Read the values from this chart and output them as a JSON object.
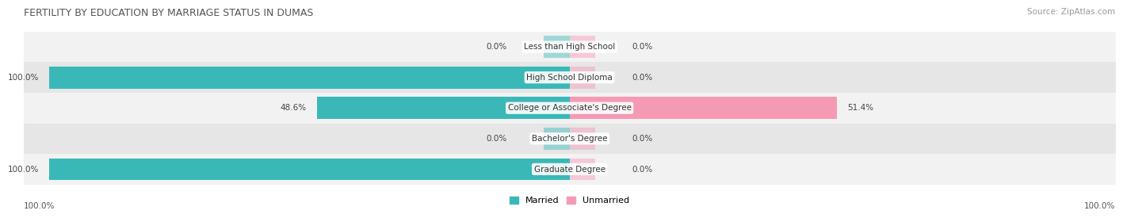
{
  "title": "FERTILITY BY EDUCATION BY MARRIAGE STATUS IN DUMAS",
  "source": "Source: ZipAtlas.com",
  "categories": [
    "Less than High School",
    "High School Diploma",
    "College or Associate's Degree",
    "Bachelor's Degree",
    "Graduate Degree"
  ],
  "married": [
    0.0,
    100.0,
    48.6,
    0.0,
    100.0
  ],
  "unmarried": [
    0.0,
    0.0,
    51.4,
    0.0,
    0.0
  ],
  "married_color": "#3ab8b8",
  "unmarried_color": "#f59ab5",
  "row_bg_light": "#f2f2f2",
  "row_bg_dark": "#e6e6e6",
  "label_color": "#444444",
  "title_color": "#555555",
  "source_color": "#999999",
  "legend_married": "Married",
  "legend_unmarried": "Unmarried",
  "axis_label_left": "100.0%",
  "axis_label_right": "100.0%",
  "figsize": [
    14.06,
    2.69
  ],
  "dpi": 100
}
